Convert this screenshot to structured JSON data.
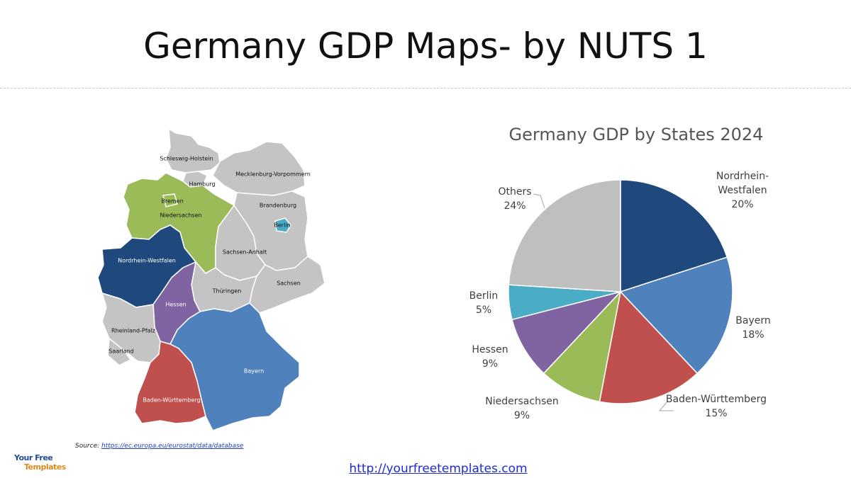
{
  "slide": {
    "title": "Germany GDP Maps- by NUTS 1",
    "source_prefix": "Source:",
    "source_url": "https://ec.europa.eu/eurostat/data/database",
    "footer_url": "http://yourfreetemplates.com",
    "logo_line1": "Your Free",
    "logo_line2": "Templates"
  },
  "map": {
    "regions": [
      {
        "name": "Schleswig-Holstein",
        "color": "#c4c4c4"
      },
      {
        "name": "Mecklenburg-Vorpommern",
        "color": "#c4c4c4"
      },
      {
        "name": "Hamburg",
        "color": "#c4c4c4"
      },
      {
        "name": "Bremen",
        "color": "#9bbb59"
      },
      {
        "name": "Niedersachsen",
        "color": "#9bbb59"
      },
      {
        "name": "Brandenburg",
        "color": "#c4c4c4"
      },
      {
        "name": "Berlin",
        "color": "#4bacc6"
      },
      {
        "name": "Sachsen-Anhalt",
        "color": "#c4c4c4"
      },
      {
        "name": "Nordrhein-Westfalen",
        "color": "#1f497d"
      },
      {
        "name": "Sachsen",
        "color": "#c4c4c4"
      },
      {
        "name": "Thüringen",
        "color": "#c4c4c4"
      },
      {
        "name": "Hessen",
        "color": "#8064a2"
      },
      {
        "name": "Rheinland-Pfalz",
        "color": "#c4c4c4"
      },
      {
        "name": "Saarland",
        "color": "#c4c4c4"
      },
      {
        "name": "Bayern",
        "color": "#4f81bd"
      },
      {
        "name": "Baden-Württemberg",
        "color": "#c0504d"
      }
    ]
  },
  "chart_data": {
    "type": "pie",
    "title": "Germany GDP by States 2024",
    "slices": [
      {
        "label": "Nordrhein-Westfalen",
        "display": [
          "Nordrhein-",
          "Westfalen"
        ],
        "value": 20,
        "value_label": "20%",
        "color": "#1f497d"
      },
      {
        "label": "Bayern",
        "display": [
          "Bayern"
        ],
        "value": 18,
        "value_label": "18%",
        "color": "#4f81bd"
      },
      {
        "label": "Baden-Württemberg",
        "display": [
          "Baden-Württemberg"
        ],
        "value": 15,
        "value_label": "15%",
        "color": "#c0504d"
      },
      {
        "label": "Niedersachsen",
        "display": [
          "Niedersachsen"
        ],
        "value": 9,
        "value_label": "9%",
        "color": "#9bbb59"
      },
      {
        "label": "Hessen",
        "display": [
          "Hessen"
        ],
        "value": 9,
        "value_label": "9%",
        "color": "#8064a2"
      },
      {
        "label": "Berlin",
        "display": [
          "Berlin"
        ],
        "value": 5,
        "value_label": "5%",
        "color": "#4bacc6"
      },
      {
        "label": "Others",
        "display": [
          "Others"
        ],
        "value": 24,
        "value_label": "24%",
        "color": "#bfbfbf"
      }
    ],
    "start_angle_deg": 0,
    "direction": "clockwise",
    "legend": "none",
    "data_labels": "outside"
  }
}
